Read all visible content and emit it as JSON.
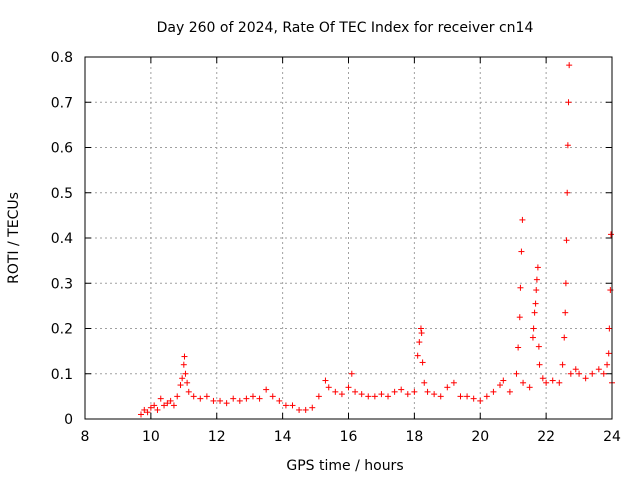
{
  "chart_data": {
    "type": "scatter",
    "title": "Day 260 of 2024, Rate Of TEC Index for receiver cn14",
    "xlabel": "GPS time / hours",
    "ylabel": "ROTI / TECUs",
    "xlim": [
      8,
      24
    ],
    "ylim": [
      0,
      0.8
    ],
    "xticks": [
      8,
      10,
      12,
      14,
      16,
      18,
      20,
      22,
      24
    ],
    "xtick_labels": [
      "8",
      "10",
      "12",
      "14",
      "16",
      "18",
      "20",
      "22",
      "24"
    ],
    "yticks": [
      0,
      0.1,
      0.2,
      0.3,
      0.4,
      0.5,
      0.6,
      0.7,
      0.8
    ],
    "ytick_labels": [
      "0",
      "0.1",
      "0.2",
      "0.3",
      "0.4",
      "0.5",
      "0.6",
      "0.7",
      "0.8"
    ],
    "grid": true,
    "marker": "plus",
    "color": "#ff0000",
    "series": [
      {
        "name": "ROTI",
        "points": [
          [
            9.7,
            0.01
          ],
          [
            9.8,
            0.02
          ],
          [
            9.9,
            0.015
          ],
          [
            10.0,
            0.025
          ],
          [
            10.1,
            0.03
          ],
          [
            10.2,
            0.02
          ],
          [
            10.3,
            0.045
          ],
          [
            10.4,
            0.03
          ],
          [
            10.5,
            0.035
          ],
          [
            10.6,
            0.04
          ],
          [
            10.7,
            0.03
          ],
          [
            10.8,
            0.05
          ],
          [
            10.9,
            0.075
          ],
          [
            10.95,
            0.09
          ],
          [
            11.0,
            0.12
          ],
          [
            11.02,
            0.138
          ],
          [
            11.05,
            0.1
          ],
          [
            11.1,
            0.08
          ],
          [
            11.15,
            0.06
          ],
          [
            11.3,
            0.05
          ],
          [
            11.5,
            0.045
          ],
          [
            11.7,
            0.05
          ],
          [
            11.9,
            0.04
          ],
          [
            12.1,
            0.04
          ],
          [
            12.3,
            0.035
          ],
          [
            12.5,
            0.045
          ],
          [
            12.7,
            0.04
          ],
          [
            12.9,
            0.045
          ],
          [
            13.1,
            0.05
          ],
          [
            13.3,
            0.045
          ],
          [
            13.5,
            0.065
          ],
          [
            13.7,
            0.05
          ],
          [
            13.9,
            0.04
          ],
          [
            14.1,
            0.03
          ],
          [
            14.3,
            0.03
          ],
          [
            14.5,
            0.02
          ],
          [
            14.7,
            0.02
          ],
          [
            14.9,
            0.025
          ],
          [
            15.1,
            0.05
          ],
          [
            15.3,
            0.085
          ],
          [
            15.4,
            0.07
          ],
          [
            15.6,
            0.06
          ],
          [
            15.8,
            0.055
          ],
          [
            16.0,
            0.07
          ],
          [
            16.1,
            0.1
          ],
          [
            16.2,
            0.06
          ],
          [
            16.4,
            0.055
          ],
          [
            16.6,
            0.05
          ],
          [
            16.8,
            0.05
          ],
          [
            17.0,
            0.055
          ],
          [
            17.2,
            0.05
          ],
          [
            17.4,
            0.06
          ],
          [
            17.6,
            0.065
          ],
          [
            17.8,
            0.055
          ],
          [
            18.0,
            0.06
          ],
          [
            18.1,
            0.14
          ],
          [
            18.15,
            0.17
          ],
          [
            18.2,
            0.2
          ],
          [
            18.22,
            0.19
          ],
          [
            18.25,
            0.125
          ],
          [
            18.3,
            0.08
          ],
          [
            18.4,
            0.06
          ],
          [
            18.6,
            0.055
          ],
          [
            18.8,
            0.05
          ],
          [
            19.0,
            0.07
          ],
          [
            19.2,
            0.08
          ],
          [
            19.4,
            0.05
          ],
          [
            19.6,
            0.05
          ],
          [
            19.8,
            0.045
          ],
          [
            20.0,
            0.04
          ],
          [
            20.2,
            0.05
          ],
          [
            20.4,
            0.06
          ],
          [
            20.6,
            0.075
          ],
          [
            20.7,
            0.085
          ],
          [
            20.9,
            0.06
          ],
          [
            21.1,
            0.1
          ],
          [
            21.15,
            0.158
          ],
          [
            21.2,
            0.225
          ],
          [
            21.22,
            0.29
          ],
          [
            21.25,
            0.37
          ],
          [
            21.28,
            0.44
          ],
          [
            21.3,
            0.08
          ],
          [
            21.5,
            0.07
          ],
          [
            21.6,
            0.18
          ],
          [
            21.62,
            0.2
          ],
          [
            21.65,
            0.235
          ],
          [
            21.68,
            0.255
          ],
          [
            21.7,
            0.285
          ],
          [
            21.72,
            0.308
          ],
          [
            21.75,
            0.335
          ],
          [
            21.78,
            0.16
          ],
          [
            21.8,
            0.12
          ],
          [
            21.9,
            0.09
          ],
          [
            22.0,
            0.08
          ],
          [
            22.2,
            0.085
          ],
          [
            22.4,
            0.08
          ],
          [
            22.5,
            0.12
          ],
          [
            22.55,
            0.18
          ],
          [
            22.58,
            0.235
          ],
          [
            22.6,
            0.3
          ],
          [
            22.62,
            0.395
          ],
          [
            22.64,
            0.5
          ],
          [
            22.66,
            0.605
          ],
          [
            22.68,
            0.7
          ],
          [
            22.7,
            0.782
          ],
          [
            22.75,
            0.1
          ],
          [
            22.9,
            0.11
          ],
          [
            23.0,
            0.1
          ],
          [
            23.2,
            0.09
          ],
          [
            23.4,
            0.1
          ],
          [
            23.6,
            0.11
          ],
          [
            23.75,
            0.1
          ],
          [
            23.85,
            0.12
          ],
          [
            23.9,
            0.145
          ],
          [
            23.92,
            0.2
          ],
          [
            23.95,
            0.285
          ],
          [
            23.97,
            0.408
          ],
          [
            24.0,
            0.08
          ]
        ]
      }
    ]
  }
}
